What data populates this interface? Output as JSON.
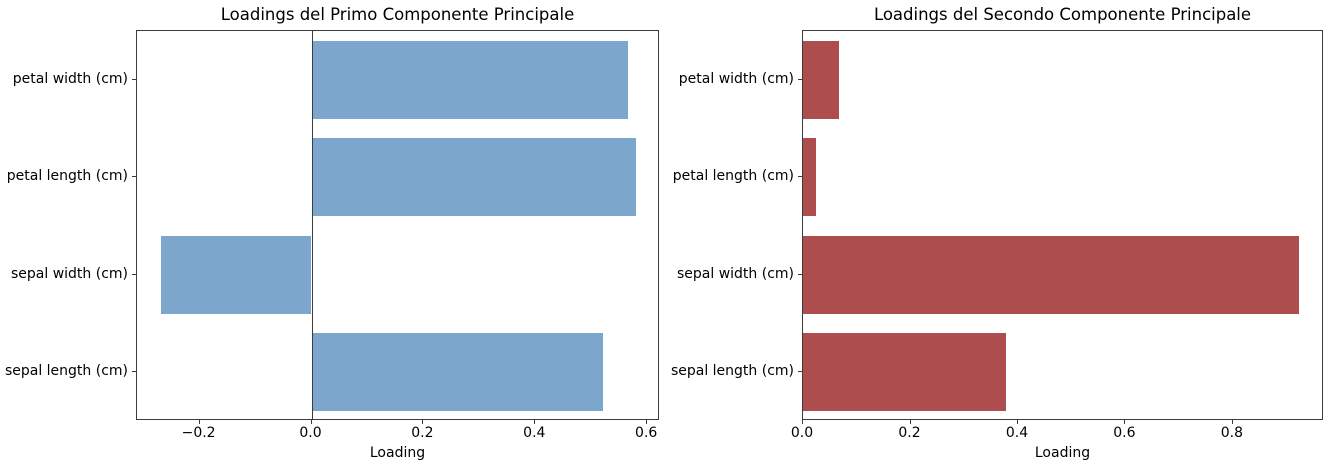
{
  "chart_data": [
    {
      "type": "bar",
      "orientation": "horizontal",
      "title": "Loadings del Primo Componente Principale",
      "xlabel": "Loading",
      "categories": [
        "petal width (cm)",
        "petal length (cm)",
        "sepal width (cm)",
        "sepal length (cm)"
      ],
      "values": [
        0.5649,
        0.5804,
        -0.2693,
        0.5211
      ],
      "bar_color": "#7CA6CB",
      "xlim": [
        -0.3118,
        0.6229
      ],
      "xticks": [
        {
          "value": -0.2,
          "label": "−0.2"
        },
        {
          "value": 0.0,
          "label": "0.0"
        },
        {
          "value": 0.2,
          "label": "0.2"
        },
        {
          "value": 0.4,
          "label": "0.4"
        },
        {
          "value": 0.6,
          "label": "0.6"
        }
      ],
      "zero_line": true,
      "grid": false,
      "legend": null
    },
    {
      "type": "bar",
      "orientation": "horizontal",
      "title": "Loadings del Secondo Componente Principale",
      "xlabel": "Loading",
      "categories": [
        "petal width (cm)",
        "petal length (cm)",
        "sepal width (cm)",
        "sepal length (cm)"
      ],
      "values": [
        0.0669,
        0.0245,
        0.9233,
        0.3774
      ],
      "bar_color": "#AE4D4D",
      "xlim": [
        0.0,
        0.9695
      ],
      "xticks": [
        {
          "value": 0.0,
          "label": "0.0"
        },
        {
          "value": 0.2,
          "label": "0.2"
        },
        {
          "value": 0.4,
          "label": "0.4"
        },
        {
          "value": 0.6,
          "label": "0.6"
        },
        {
          "value": 0.8,
          "label": "0.8"
        }
      ],
      "zero_line": false,
      "grid": false,
      "legend": null
    }
  ]
}
